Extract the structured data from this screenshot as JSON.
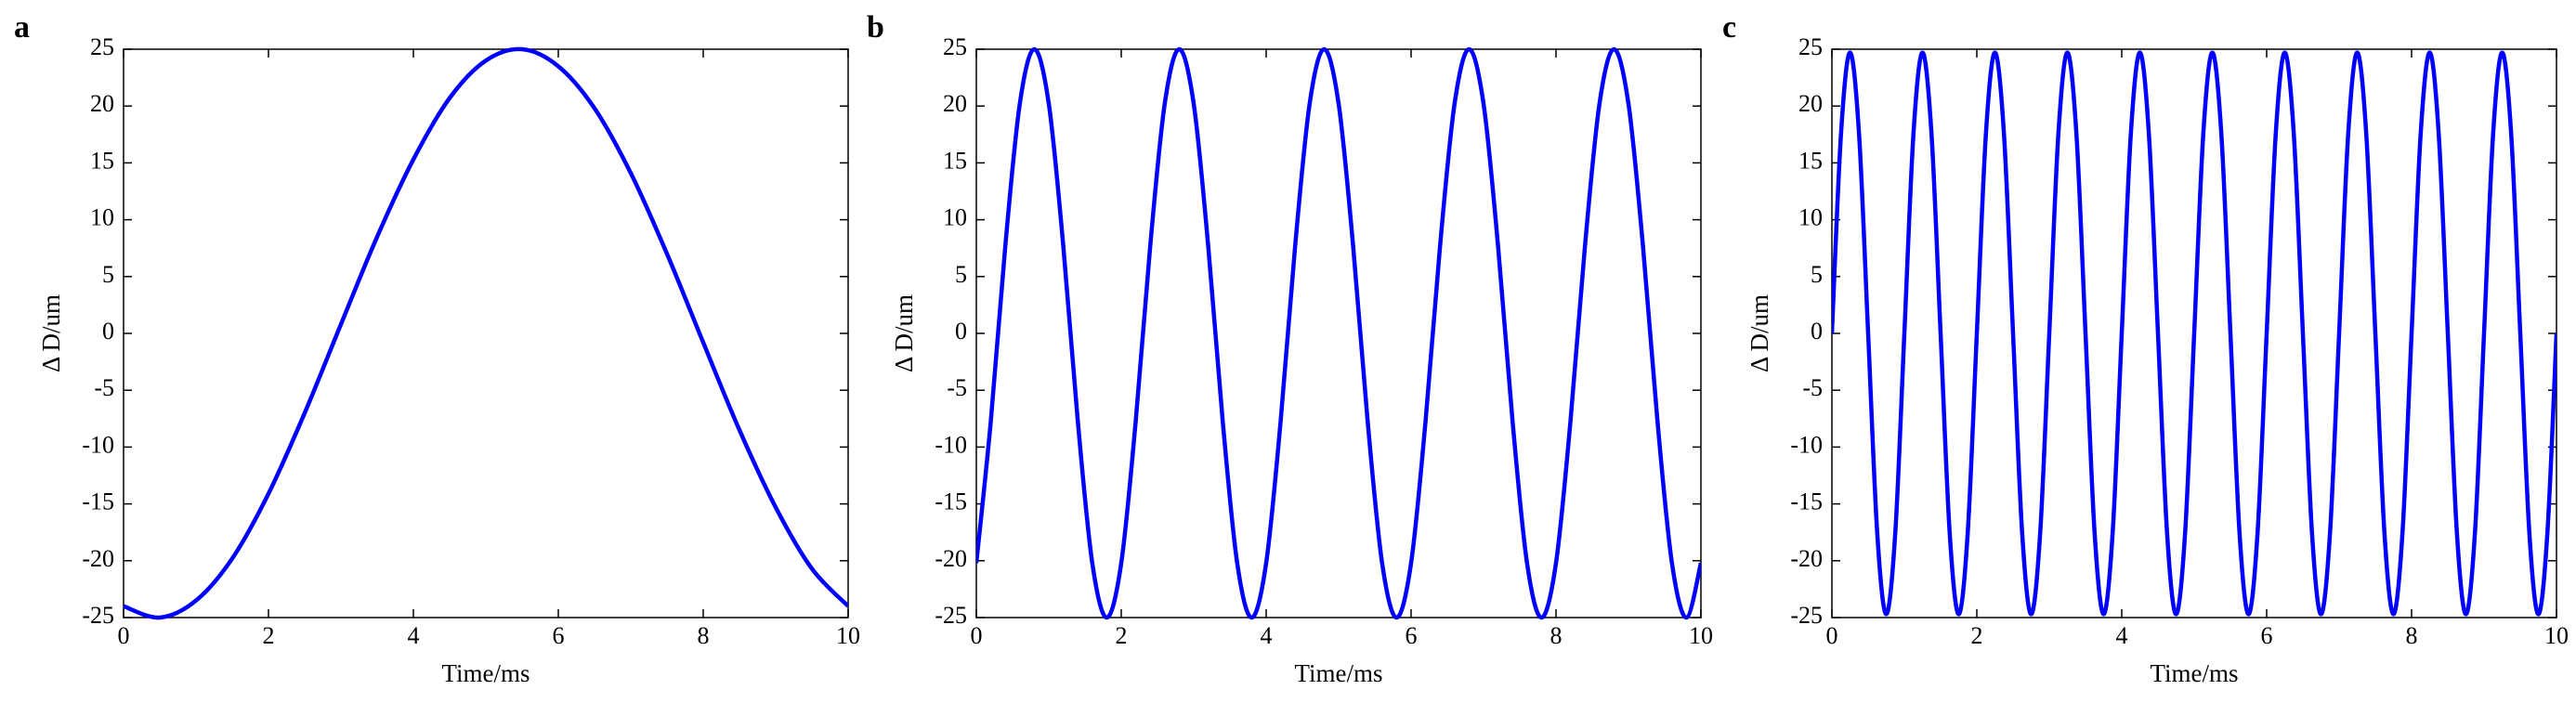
{
  "chart_data": [
    {
      "type": "line",
      "panel_label": "a",
      "xlabel": "Time/ms",
      "ylabel": "Δ D/um",
      "color": "#0000ff",
      "xlim": [
        0,
        10
      ],
      "ylim": [
        -25,
        25
      ],
      "xticks": [
        0,
        2,
        4,
        6,
        8,
        10
      ],
      "yticks": [
        -25,
        -20,
        -15,
        -10,
        -5,
        0,
        5,
        10,
        15,
        20,
        25
      ],
      "x": [
        0,
        0.5,
        1,
        1.5,
        2,
        2.5,
        3,
        3.5,
        4,
        4.5,
        5,
        5.5,
        6,
        6.5,
        7,
        7.5,
        8,
        8.5,
        9,
        9.5,
        10
      ],
      "values": [
        -24.0,
        -25.0,
        -23.5,
        -19.8,
        -14.1,
        -7.0,
        0.8,
        8.5,
        15.3,
        20.7,
        24.0,
        25.0,
        23.5,
        19.8,
        14.1,
        7.0,
        -0.8,
        -8.5,
        -15.3,
        -20.7,
        -24.0
      ]
    },
    {
      "type": "line",
      "panel_label": "b",
      "xlabel": "Time/ms",
      "ylabel": "Δ D/um",
      "color": "#0000ff",
      "xlim": [
        0,
        10
      ],
      "ylim": [
        -25,
        25
      ],
      "xticks": [
        0,
        2,
        4,
        6,
        8,
        10
      ],
      "yticks": [
        -25,
        -20,
        -15,
        -10,
        -5,
        0,
        5,
        10,
        15,
        20,
        25
      ],
      "x": [
        0,
        0.2,
        0.4,
        0.6,
        0.8,
        1,
        1.2,
        1.4,
        1.6,
        1.8,
        2,
        2.2,
        2.4,
        2.6,
        2.8,
        3,
        3.2,
        3.4,
        3.6,
        3.8,
        4,
        4.2,
        4.4,
        4.6,
        4.8,
        5,
        5.2,
        5.4,
        5.6,
        5.8,
        6,
        6.2,
        6.4,
        6.6,
        6.8,
        7,
        7.2,
        7.4,
        7.6,
        7.8,
        8,
        8.2,
        8.4,
        8.6,
        8.8,
        9,
        9.2,
        9.4,
        9.6,
        9.8,
        10
      ],
      "values": [
        -20.2,
        -7.7,
        7.7,
        20.2,
        25,
        20.2,
        7.7,
        -7.7,
        -20.2,
        -25,
        -20.2,
        -7.7,
        7.7,
        20.2,
        25,
        20.2,
        7.7,
        -7.7,
        -20.2,
        -25,
        -20.2,
        -7.7,
        7.7,
        20.2,
        25,
        20.2,
        7.7,
        -7.7,
        -20.2,
        -25,
        -20.2,
        -7.7,
        7.7,
        20.2,
        25,
        20.2,
        7.7,
        -7.7,
        -20.2,
        -25,
        -20.2,
        -7.7,
        7.7,
        20.2,
        25,
        20.2,
        7.7,
        -7.7,
        -20.2,
        -25,
        -20.2
      ]
    },
    {
      "type": "line",
      "panel_label": "c",
      "xlabel": "Time/ms",
      "ylabel": "Δ D/um",
      "color": "#0000ff",
      "xlim": [
        0,
        10
      ],
      "ylim": [
        -25,
        25
      ],
      "xticks": [
        0,
        2,
        4,
        6,
        8,
        10
      ],
      "yticks": [
        -25,
        -20,
        -15,
        -10,
        -5,
        0,
        5,
        10,
        15,
        20,
        25
      ],
      "x": [
        0,
        0.125,
        0.25,
        0.375,
        0.5,
        0.625,
        0.75,
        0.875,
        1,
        1.125,
        1.25,
        1.375,
        1.5,
        1.625,
        1.75,
        1.875,
        2,
        2.125,
        2.25,
        2.375,
        2.5,
        2.625,
        2.75,
        2.875,
        3,
        3.125,
        3.25,
        3.375,
        3.5,
        3.625,
        3.75,
        3.875,
        4,
        4.125,
        4.25,
        4.375,
        4.5,
        4.625,
        4.75,
        4.875,
        5,
        5.125,
        5.25,
        5.375,
        5.5,
        5.625,
        5.75,
        5.875,
        6,
        6.125,
        6.25,
        6.375,
        6.5,
        6.625,
        6.75,
        6.875,
        7,
        7.125,
        7.25,
        7.375,
        7.5,
        7.625,
        7.75,
        7.875,
        8,
        8.125,
        8.25,
        8.375,
        8.5,
        8.625,
        8.75,
        8.875,
        9,
        9.125,
        9.25,
        9.375,
        9.5,
        9.625,
        9.75,
        9.875,
        10
      ],
      "values": [
        0,
        17.5,
        24.7,
        17.5,
        0,
        -17.5,
        -24.7,
        -17.5,
        0,
        17.5,
        24.7,
        17.5,
        0,
        -17.5,
        -24.7,
        -17.5,
        0,
        17.5,
        24.7,
        17.5,
        0,
        -17.5,
        -24.7,
        -17.5,
        0,
        17.5,
        24.7,
        17.5,
        0,
        -17.5,
        -24.7,
        -17.5,
        0,
        17.5,
        24.7,
        17.5,
        0,
        -17.5,
        -24.7,
        -17.5,
        0,
        17.5,
        24.7,
        17.5,
        0,
        -17.5,
        -24.7,
        -17.5,
        0,
        17.5,
        24.7,
        17.5,
        0,
        -17.5,
        -24.7,
        -17.5,
        0,
        17.5,
        24.7,
        17.5,
        0,
        -17.5,
        -24.7,
        -17.5,
        0,
        17.5,
        24.7,
        17.5,
        0,
        -17.5,
        -24.7,
        -17.5,
        0,
        17.5,
        24.7,
        17.5,
        0,
        -17.5,
        -24.7,
        -17.5,
        0
      ]
    }
  ]
}
